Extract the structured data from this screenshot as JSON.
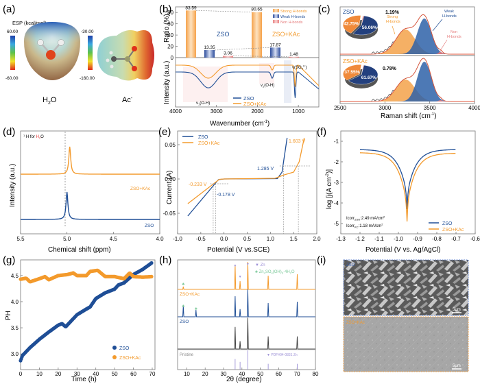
{
  "colors": {
    "zso": "#1f4e96",
    "kac": "#f39a2c",
    "non": "#e57a7a",
    "green": "#7cc99a",
    "purple": "#9b8fd6",
    "axis": "#777777",
    "grid": "#999999"
  },
  "panels": {
    "a": {
      "label": "(a)",
      "esp_title": "ESP (kcal/mol)",
      "h2o_max": "60.00",
      "h2o_min": "-60.00",
      "ac_max": "-30.00",
      "ac_min": "-160.00",
      "h2o_name": "H2O",
      "ac_name": "Ac-"
    },
    "b": {
      "label": "(b)",
      "ratio_ylabel": "Ratio (%)",
      "ir_ylabel": "Intensity (a.u.)",
      "xlabel": "Wavenumber (cm-1)",
      "group1": "ZSO",
      "group2": "ZSO+KAc",
      "legend": [
        "Strong H-bonds",
        "Weak H-bonds",
        "Non H-bonds"
      ],
      "annot": [
        "v(SO42-)",
        "v2(O-H)",
        "v1(O-H)"
      ],
      "line_legend": [
        "ZSO",
        "ZSO+KAc"
      ]
    },
    "c": {
      "label": "(c)",
      "xlabel": "Raman shift (cm-1)",
      "top": "ZSO",
      "bottom": "ZSO+KAc",
      "strong": "Strong H-bonds",
      "weak": "Weak H-bonds",
      "non": "Non H-bonds"
    },
    "d": {
      "label": "(d)",
      "note": "1H for H2O",
      "ylabel": "Intensity (a.u.)",
      "xlabel": "Chemical shift (ppm)",
      "zso": "ZSO",
      "kac": "ZSO+KAc"
    },
    "e": {
      "label": "(e)",
      "ylabel": "Current (A)",
      "xlabel": "Potential (V vs.SCE)",
      "annot": [
        "-0.233 V",
        "-0.178 V",
        "1.285 V",
        "1.603 V"
      ],
      "legend": [
        "ZSO",
        "ZSO+KAc"
      ]
    },
    "f": {
      "label": "(f)",
      "ylabel": "log [j(A cm-2)]",
      "xlabel": "Potential (V vs. Ag/AgCl)",
      "icorr1": "Icorr ZSO: 2.49 mA/cm2",
      "icorr2": "Icorr KC: 1.18 mA/cm2",
      "legend": [
        "ZSO",
        "ZSO+KAc"
      ]
    },
    "g": {
      "label": "(g)",
      "ylabel": "PH",
      "xlabel": "Time (h)",
      "legend": [
        "ZSO",
        "ZSO+KAc"
      ]
    },
    "h": {
      "label": "(h)",
      "xlabel": "2θ (degree)",
      "zn": "Zn",
      "zhs": "Zn4SO4(OH)6·4H2O",
      "kac": "ZSO+KAc",
      "zso": "ZSO",
      "pristine": "Pristine",
      "pdf": "PDF#04-0831 Zn"
    },
    "i": {
      "label": "(i)",
      "top": "ZSO",
      "bottom": "ZSO+KAc",
      "scale": "5μm"
    }
  },
  "chart_data": [
    {
      "panel": "b-top",
      "type": "bar",
      "title": "",
      "ylabel": "Ratio (%)",
      "ylim": [
        0,
        90
      ],
      "yticks": [
        0,
        20,
        40,
        60,
        80
      ],
      "categories": [
        "ZSO",
        "ZSO+KAc"
      ],
      "series": [
        {
          "name": "Strong H-bonds",
          "values": [
            83.59,
            80.65
          ]
        },
        {
          "name": "Weak H-bonds",
          "values": [
            13.35,
            17.87
          ]
        },
        {
          "name": "Non H-bonds",
          "values": [
            3.06,
            1.48
          ]
        }
      ]
    },
    {
      "panel": "b-bottom",
      "type": "line",
      "xlabel": "Wavenumber (cm-1)",
      "ylabel": "Intensity (a.u.)",
      "xlim": [
        4000,
        500
      ],
      "xticks": [
        4000,
        3000,
        2000,
        1000
      ],
      "series": [
        {
          "name": "ZSO",
          "dips": [
            {
              "x": 3200,
              "depth": 0.55
            },
            {
              "x": 1640,
              "depth": 0.22
            },
            {
              "x": 1080,
              "depth": 0.9
            }
          ]
        },
        {
          "name": "ZSO+KAc",
          "dips": [
            {
              "x": 3200,
              "depth": 0.45
            },
            {
              "x": 1640,
              "depth": 0.17
            },
            {
              "x": 1080,
              "depth": 0.75
            }
          ]
        }
      ]
    },
    {
      "panel": "c",
      "type": "area",
      "xlabel": "Raman shift (cm-1)",
      "xlim": [
        2500,
        4000
      ],
      "xticks": [
        2500,
        3000,
        3500,
        4000
      ],
      "pies": [
        {
          "name": "ZSO",
          "values": [
            {
              "label": "Weak",
              "value": 56.06
            },
            {
              "label": "Strong",
              "value": 42.75
            },
            {
              "label": "Non",
              "value": 1.19
            }
          ]
        },
        {
          "name": "ZSO+KAc",
          "values": [
            {
              "label": "Weak",
              "value": 61.67
            },
            {
              "label": "Strong",
              "value": 37.55
            },
            {
              "label": "Non",
              "value": 0.78
            }
          ]
        }
      ]
    },
    {
      "panel": "d",
      "type": "line",
      "xlabel": "Chemical shift (ppm)",
      "ylabel": "Intensity (a.u.)",
      "xlim": [
        5.5,
        4.0
      ],
      "xticks": [
        5.5,
        5.0,
        4.5,
        4.0
      ],
      "series": [
        {
          "name": "ZSO+KAc",
          "peak": 4.97
        },
        {
          "name": "ZSO",
          "peak": 5.0
        }
      ],
      "reference_line": 5.0
    },
    {
      "panel": "e",
      "type": "line",
      "xlabel": "Potential (V vs.SCE)",
      "ylabel": "Current (A)",
      "xlim": [
        -1.0,
        2.0
      ],
      "ylim": [
        -0.08,
        0.07
      ],
      "xticks": [
        -1.0,
        -0.5,
        0.0,
        0.5,
        1.0,
        1.5,
        2.0
      ],
      "yticks": [
        -0.05,
        0.0,
        0.05
      ],
      "series": [
        {
          "name": "ZSO",
          "onsets": [
            -0.178,
            1.285
          ]
        },
        {
          "name": "ZSO+KAc",
          "onsets": [
            -0.233,
            1.603
          ]
        }
      ]
    },
    {
      "panel": "f",
      "type": "line",
      "xlabel": "Potential (V vs. Ag/AgCl)",
      "ylabel": "log [j(A cm-2)]",
      "xlim": [
        -1.3,
        -0.6
      ],
      "ylim": [
        -5.5,
        -0.5
      ],
      "xticks": [
        -1.3,
        -1.2,
        -1.1,
        -1.0,
        -0.9,
        -0.8,
        -0.7,
        -0.6
      ],
      "yticks": [
        -5,
        -4,
        -3,
        -2,
        -1
      ],
      "series": [
        {
          "name": "ZSO",
          "ecorr": -0.955,
          "min": -4.3,
          "ends": [
            -1.4,
            -1.4
          ]
        },
        {
          "name": "ZSO+KAc",
          "ecorr": -0.955,
          "min": -4.9,
          "ends": [
            -1.55,
            -1.58
          ]
        }
      ]
    },
    {
      "panel": "g",
      "type": "scatter",
      "xlabel": "Time (h)",
      "ylabel": "PH",
      "xlim": [
        0,
        70
      ],
      "ylim": [
        2.7,
        4.8
      ],
      "xticks": [
        0,
        10,
        20,
        30,
        40,
        50,
        60,
        70
      ],
      "yticks": [
        3.0,
        3.5,
        4.0,
        4.5
      ],
      "series": [
        {
          "name": "ZSO",
          "x": [
            0,
            1,
            5,
            10,
            15,
            20,
            22,
            24,
            30,
            35,
            37,
            40,
            45,
            50,
            52,
            55,
            60,
            65,
            70
          ],
          "y": [
            2.87,
            2.97,
            3.12,
            3.28,
            3.42,
            3.55,
            3.58,
            3.52,
            3.75,
            3.86,
            3.9,
            4.06,
            4.17,
            4.24,
            4.32,
            4.36,
            4.52,
            4.62,
            4.75
          ]
        },
        {
          "name": "ZSO+KAc",
          "x": [
            0,
            3,
            5,
            10,
            13,
            15,
            20,
            25,
            28,
            30,
            35,
            37,
            41,
            45,
            50,
            55,
            58,
            60,
            65,
            70
          ],
          "y": [
            4.43,
            4.45,
            4.38,
            4.44,
            4.48,
            4.42,
            4.5,
            4.52,
            4.55,
            4.5,
            4.5,
            4.58,
            4.6,
            4.48,
            4.48,
            4.44,
            4.55,
            4.48,
            4.47,
            4.48
          ]
        }
      ]
    },
    {
      "panel": "h",
      "type": "line",
      "xlabel": "2θ (degree)",
      "xlim": [
        5,
        80
      ],
      "xticks": [
        10,
        20,
        30,
        40,
        50,
        60,
        70,
        80
      ],
      "zn_peaks": [
        36.3,
        39.0,
        43.2,
        54.3,
        70.1,
        77.0
      ],
      "zhs_peaks": [
        8.1,
        15.0
      ],
      "series": [
        {
          "name": "ZSO+KAc",
          "peaks": [
            {
              "x": 8.1,
              "h": 0.1
            },
            {
              "x": 36.3,
              "h": 0.9
            },
            {
              "x": 39.0,
              "h": 0.3
            },
            {
              "x": 43.2,
              "h": 1.0
            },
            {
              "x": 54.3,
              "h": 0.5
            },
            {
              "x": 70.1,
              "h": 0.55
            }
          ]
        },
        {
          "name": "ZSO",
          "peaks": [
            {
              "x": 8.1,
              "h": 0.4
            },
            {
              "x": 15.0,
              "h": 0.25
            },
            {
              "x": 36.3,
              "h": 0.75
            },
            {
              "x": 39.0,
              "h": 0.28
            },
            {
              "x": 43.2,
              "h": 1.0
            },
            {
              "x": 54.3,
              "h": 0.5
            },
            {
              "x": 70.1,
              "h": 0.55
            }
          ]
        },
        {
          "name": "Pristine",
          "peaks": [
            {
              "x": 36.3,
              "h": 0.7
            },
            {
              "x": 39.0,
              "h": 0.25
            },
            {
              "x": 43.2,
              "h": 1.0
            },
            {
              "x": 54.3,
              "h": 0.4
            },
            {
              "x": 70.1,
              "h": 0.4
            }
          ]
        }
      ]
    }
  ]
}
